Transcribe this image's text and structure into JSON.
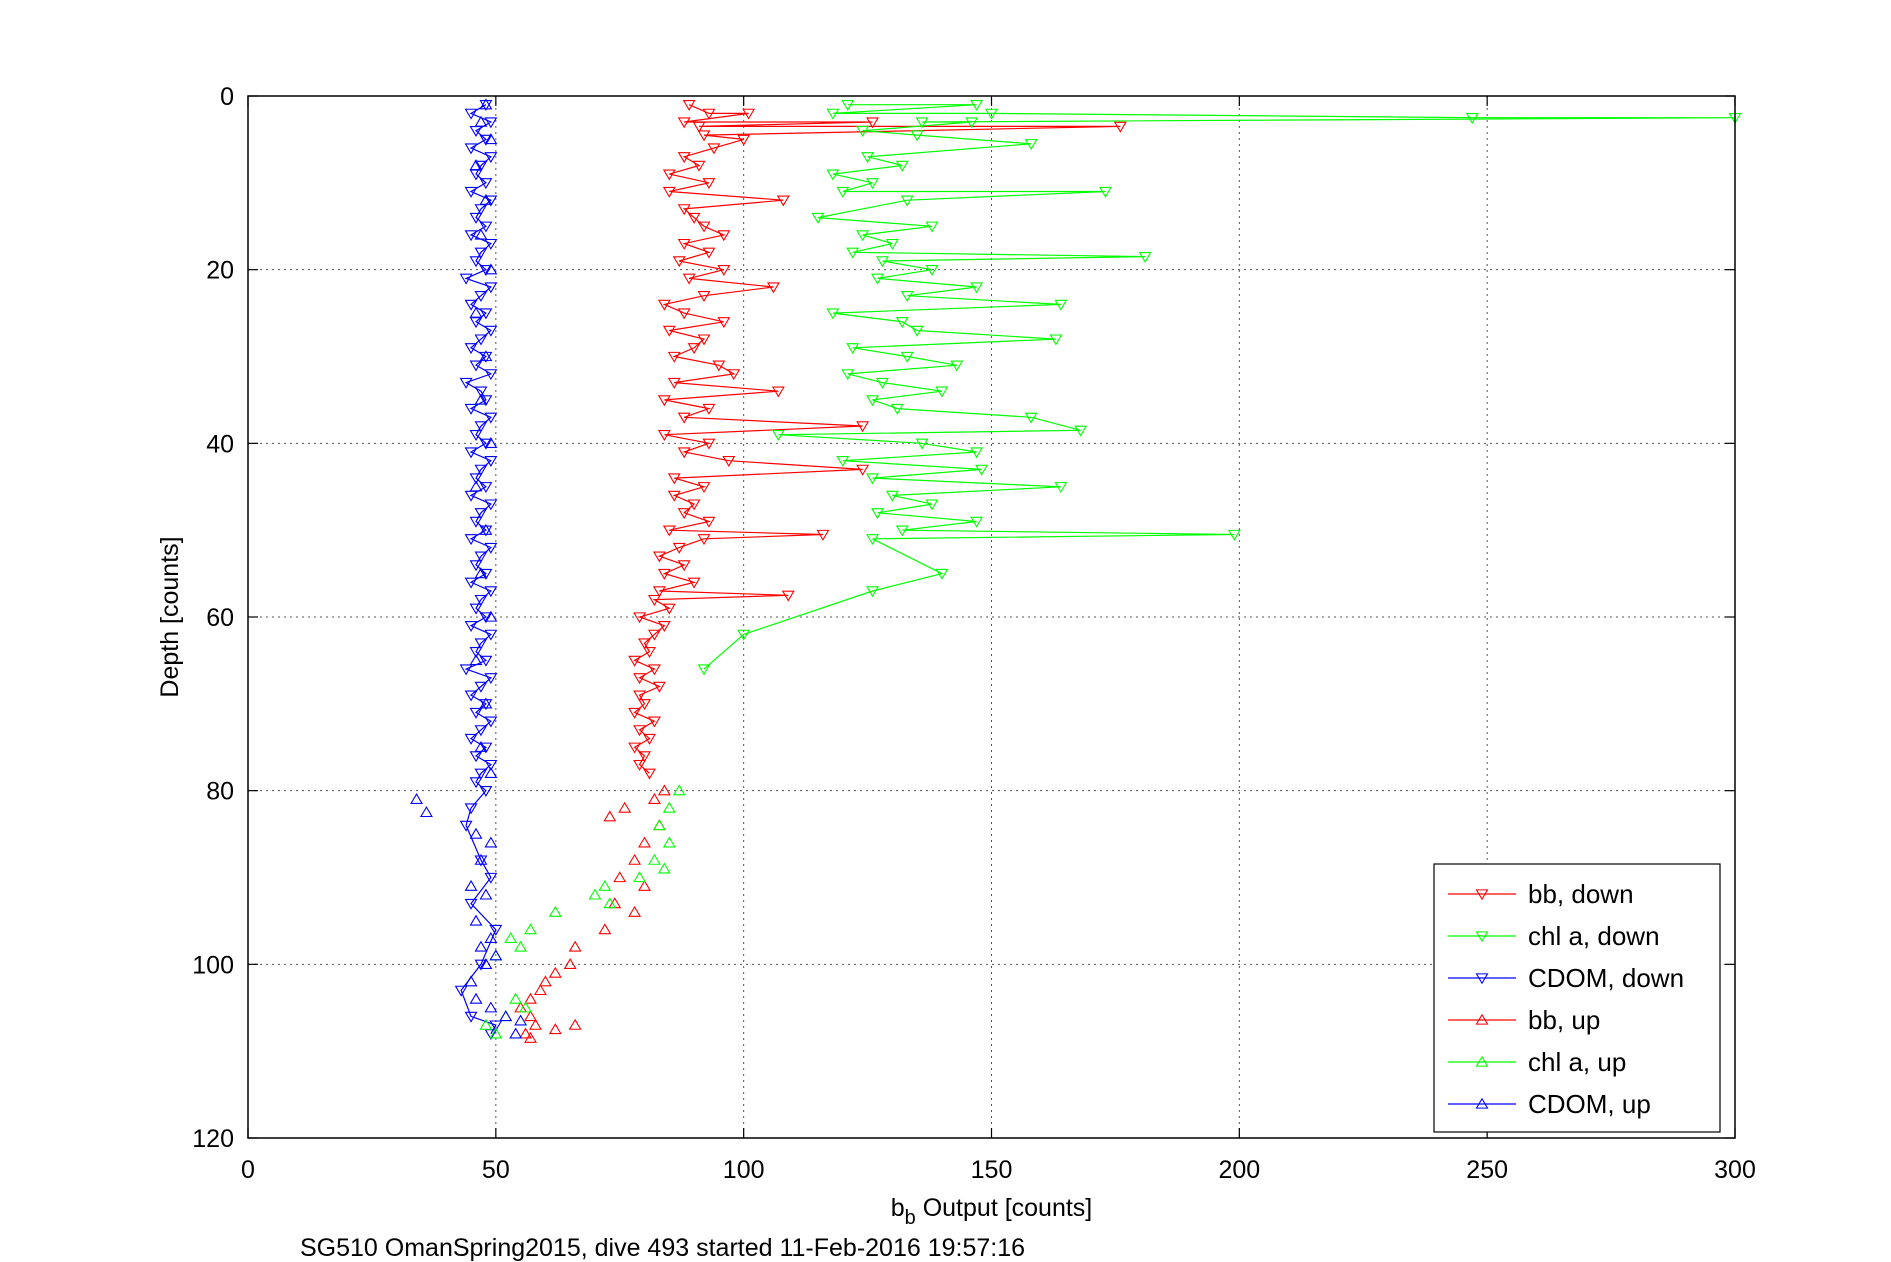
{
  "chart_data": {
    "type": "scatter",
    "xlabel_main": "b",
    "xlabel_sub": "b",
    "xlabel_rest": " Output [counts]",
    "ylabel": "Depth [counts]",
    "caption": "SG510 OmanSpring2015, dive 493 started 11-Feb-2016 19:57:16",
    "xlim": [
      0,
      300
    ],
    "ylim": [
      0,
      120
    ],
    "y_reversed": true,
    "grid": true,
    "legend_position": "bottom-right",
    "x_ticks": [
      "0",
      "50",
      "100",
      "150",
      "200",
      "250",
      "300"
    ],
    "y_ticks": [
      "0",
      "20",
      "40",
      "60",
      "80",
      "100",
      "120"
    ],
    "series": [
      {
        "name": "bb, down",
        "color": "#ff0000",
        "marker": "triangle-down",
        "points": [
          [
            89,
            1
          ],
          [
            93,
            2
          ],
          [
            101,
            2
          ],
          [
            88,
            3
          ],
          [
            126,
            3
          ],
          [
            91,
            3.5
          ],
          [
            176,
            3.5
          ],
          [
            92,
            4.5
          ],
          [
            100,
            5
          ],
          [
            94,
            6
          ],
          [
            88,
            7
          ],
          [
            91,
            8
          ],
          [
            85,
            9
          ],
          [
            93,
            10
          ],
          [
            85,
            11
          ],
          [
            108,
            12
          ],
          [
            88,
            13
          ],
          [
            90,
            14
          ],
          [
            92,
            15
          ],
          [
            96,
            16
          ],
          [
            88,
            17
          ],
          [
            93,
            18
          ],
          [
            87,
            19
          ],
          [
            96,
            20
          ],
          [
            89,
            21
          ],
          [
            106,
            22
          ],
          [
            92,
            23
          ],
          [
            84,
            24
          ],
          [
            88,
            25
          ],
          [
            96,
            26
          ],
          [
            85,
            27
          ],
          [
            92,
            28
          ],
          [
            90,
            29
          ],
          [
            86,
            30
          ],
          [
            95,
            31
          ],
          [
            98,
            32
          ],
          [
            86,
            33
          ],
          [
            107,
            34
          ],
          [
            84,
            35
          ],
          [
            93,
            36
          ],
          [
            88,
            37
          ],
          [
            124,
            38
          ],
          [
            84,
            39
          ],
          [
            93,
            40
          ],
          [
            88,
            41
          ],
          [
            97,
            42
          ],
          [
            124,
            43
          ],
          [
            86,
            44
          ],
          [
            92,
            45
          ],
          [
            86,
            46
          ],
          [
            90,
            47
          ],
          [
            88,
            48
          ],
          [
            93,
            49
          ],
          [
            85,
            50
          ],
          [
            116,
            50.5
          ],
          [
            92,
            51
          ],
          [
            87,
            52
          ],
          [
            83,
            53
          ],
          [
            88,
            54
          ],
          [
            84,
            55
          ],
          [
            90,
            56
          ],
          [
            83,
            57
          ],
          [
            109,
            57.5
          ],
          [
            82,
            58
          ],
          [
            85,
            59
          ],
          [
            79,
            60
          ],
          [
            84,
            61
          ],
          [
            82,
            62
          ],
          [
            80,
            63
          ],
          [
            81,
            64
          ],
          [
            78,
            65
          ],
          [
            82,
            66
          ],
          [
            79,
            67
          ],
          [
            83,
            68
          ],
          [
            79,
            69
          ],
          [
            80,
            70
          ],
          [
            78,
            71
          ],
          [
            82,
            72
          ],
          [
            79,
            73
          ],
          [
            81,
            74
          ],
          [
            78,
            75
          ],
          [
            80,
            76
          ],
          [
            79,
            77
          ],
          [
            81,
            78
          ]
        ]
      },
      {
        "name": "chl a, down",
        "color": "#00ff00",
        "marker": "triangle-down",
        "points": [
          [
            121,
            1
          ],
          [
            147,
            1
          ],
          [
            118,
            2
          ],
          [
            150,
            2
          ],
          [
            247,
            2.5
          ],
          [
            300,
            2.5
          ],
          [
            136,
            3
          ],
          [
            146,
            3
          ],
          [
            124,
            4
          ],
          [
            135,
            4.5
          ],
          [
            158,
            5.5
          ],
          [
            125,
            7
          ],
          [
            132,
            8
          ],
          [
            118,
            9
          ],
          [
            126,
            10
          ],
          [
            120,
            11
          ],
          [
            173,
            11
          ],
          [
            133,
            12
          ],
          [
            115,
            14
          ],
          [
            138,
            15
          ],
          [
            124,
            16
          ],
          [
            130,
            17
          ],
          [
            122,
            18
          ],
          [
            181,
            18.5
          ],
          [
            128,
            19
          ],
          [
            138,
            20
          ],
          [
            127,
            21
          ],
          [
            147,
            22
          ],
          [
            133,
            23
          ],
          [
            164,
            24
          ],
          [
            118,
            25
          ],
          [
            132,
            26
          ],
          [
            135,
            27
          ],
          [
            163,
            28
          ],
          [
            122,
            29
          ],
          [
            133,
            30
          ],
          [
            143,
            31
          ],
          [
            121,
            32
          ],
          [
            128,
            33
          ],
          [
            140,
            34
          ],
          [
            126,
            35
          ],
          [
            131,
            36
          ],
          [
            158,
            37
          ],
          [
            168,
            38.5
          ],
          [
            107,
            39
          ],
          [
            136,
            40
          ],
          [
            147,
            41
          ],
          [
            120,
            42
          ],
          [
            148,
            43
          ],
          [
            126,
            44
          ],
          [
            164,
            45
          ],
          [
            130,
            46
          ],
          [
            138,
            47
          ],
          [
            127,
            48
          ],
          [
            147,
            49
          ],
          [
            132,
            50
          ],
          [
            199,
            50.5
          ],
          [
            126,
            51
          ],
          [
            140,
            55
          ],
          [
            126,
            57
          ],
          [
            100,
            62
          ],
          [
            92,
            66
          ]
        ]
      },
      {
        "name": "CDOM, down",
        "color": "#0000ff",
        "marker": "triangle-down",
        "points": [
          [
            48,
            1
          ],
          [
            45,
            2
          ],
          [
            49,
            3
          ],
          [
            46,
            4
          ],
          [
            48,
            5
          ],
          [
            45,
            6
          ],
          [
            49,
            7
          ],
          [
            47,
            8
          ],
          [
            46,
            9
          ],
          [
            48,
            10
          ],
          [
            45,
            11
          ],
          [
            49,
            12
          ],
          [
            47,
            13
          ],
          [
            46,
            14
          ],
          [
            48,
            15
          ],
          [
            45,
            16
          ],
          [
            49,
            17
          ],
          [
            47,
            18
          ],
          [
            46,
            19
          ],
          [
            48,
            20
          ],
          [
            44,
            21
          ],
          [
            49,
            22
          ],
          [
            47,
            23
          ],
          [
            45,
            24
          ],
          [
            48,
            25
          ],
          [
            46,
            26
          ],
          [
            49,
            27
          ],
          [
            47,
            28
          ],
          [
            45,
            29
          ],
          [
            48,
            30
          ],
          [
            46,
            31
          ],
          [
            49,
            32
          ],
          [
            44,
            33
          ],
          [
            47,
            34
          ],
          [
            48,
            35
          ],
          [
            45,
            36
          ],
          [
            49,
            37
          ],
          [
            47,
            38
          ],
          [
            46,
            39
          ],
          [
            48,
            40
          ],
          [
            45,
            41
          ],
          [
            49,
            42
          ],
          [
            47,
            43
          ],
          [
            46,
            44
          ],
          [
            48,
            45
          ],
          [
            45,
            46
          ],
          [
            49,
            47
          ],
          [
            47,
            48
          ],
          [
            46,
            49
          ],
          [
            48,
            50
          ],
          [
            45,
            51
          ],
          [
            49,
            52
          ],
          [
            47,
            53
          ],
          [
            46,
            54
          ],
          [
            48,
            55
          ],
          [
            45,
            56
          ],
          [
            49,
            57
          ],
          [
            47,
            58
          ],
          [
            46,
            59
          ],
          [
            48,
            60
          ],
          [
            45,
            61
          ],
          [
            49,
            62
          ],
          [
            47,
            63
          ],
          [
            46,
            64
          ],
          [
            48,
            65
          ],
          [
            44,
            66
          ],
          [
            49,
            67
          ],
          [
            47,
            68
          ],
          [
            45,
            69
          ],
          [
            48,
            70
          ],
          [
            46,
            71
          ],
          [
            49,
            72
          ],
          [
            47,
            73
          ],
          [
            45,
            74
          ],
          [
            48,
            75
          ],
          [
            46,
            76
          ],
          [
            49,
            77
          ],
          [
            47,
            78
          ],
          [
            46,
            79
          ],
          [
            48,
            80
          ],
          [
            45,
            82
          ],
          [
            44,
            84
          ],
          [
            47,
            88
          ],
          [
            49,
            90
          ],
          [
            45,
            93
          ],
          [
            50,
            96
          ],
          [
            47,
            100
          ],
          [
            43,
            103
          ],
          [
            45,
            106
          ],
          [
            50,
            107
          ],
          [
            49,
            108
          ]
        ]
      },
      {
        "name": "bb, up",
        "color": "#ff0000",
        "marker": "triangle-up",
        "points": [
          [
            84,
            80
          ],
          [
            82,
            81
          ],
          [
            76,
            82
          ],
          [
            73,
            83
          ],
          [
            83,
            84
          ],
          [
            80,
            86
          ],
          [
            78,
            88
          ],
          [
            75,
            90
          ],
          [
            80,
            91
          ],
          [
            74,
            93
          ],
          [
            78,
            94
          ],
          [
            72,
            96
          ],
          [
            66,
            98
          ],
          [
            65,
            100
          ],
          [
            62,
            101
          ],
          [
            60,
            102
          ],
          [
            59,
            103
          ],
          [
            57,
            104
          ],
          [
            55,
            105
          ],
          [
            57,
            106
          ],
          [
            58,
            107
          ],
          [
            62,
            107.5
          ],
          [
            66,
            107
          ],
          [
            56,
            108
          ],
          [
            57,
            108.5
          ]
        ]
      },
      {
        "name": "chl a, up",
        "color": "#00ff00",
        "marker": "triangle-up",
        "points": [
          [
            87,
            80
          ],
          [
            85,
            82
          ],
          [
            83,
            84
          ],
          [
            85,
            86
          ],
          [
            82,
            88
          ],
          [
            84,
            89
          ],
          [
            79,
            90
          ],
          [
            72,
            91
          ],
          [
            70,
            92
          ],
          [
            73,
            93
          ],
          [
            62,
            94
          ],
          [
            57,
            96
          ],
          [
            53,
            97
          ],
          [
            55,
            98
          ],
          [
            50,
            99
          ],
          [
            54,
            104
          ],
          [
            56,
            105
          ],
          [
            52,
            106
          ],
          [
            48,
            107
          ],
          [
            50,
            108
          ]
        ]
      },
      {
        "name": "CDOM, up",
        "color": "#0000ff",
        "marker": "triangle-up",
        "points": [
          [
            48,
            1
          ],
          [
            47,
            3
          ],
          [
            49,
            5
          ],
          [
            46,
            8
          ],
          [
            48,
            12
          ],
          [
            47,
            16
          ],
          [
            49,
            20
          ],
          [
            46,
            25
          ],
          [
            48,
            30
          ],
          [
            47,
            35
          ],
          [
            49,
            40
          ],
          [
            46,
            45
          ],
          [
            48,
            50
          ],
          [
            47,
            55
          ],
          [
            49,
            60
          ],
          [
            46,
            65
          ],
          [
            48,
            70
          ],
          [
            47,
            75
          ],
          [
            49,
            78
          ],
          [
            34,
            81
          ],
          [
            36,
            82.5
          ],
          [
            46,
            85
          ],
          [
            49,
            86
          ],
          [
            47,
            88
          ],
          [
            45,
            91
          ],
          [
            48,
            92
          ],
          [
            46,
            95
          ],
          [
            49,
            97
          ],
          [
            47,
            98
          ],
          [
            50,
            99
          ],
          [
            48,
            100
          ],
          [
            45,
            102
          ],
          [
            46,
            104
          ],
          [
            49,
            105
          ],
          [
            52,
            106
          ],
          [
            55,
            106.5
          ],
          [
            54,
            108
          ]
        ]
      }
    ]
  }
}
